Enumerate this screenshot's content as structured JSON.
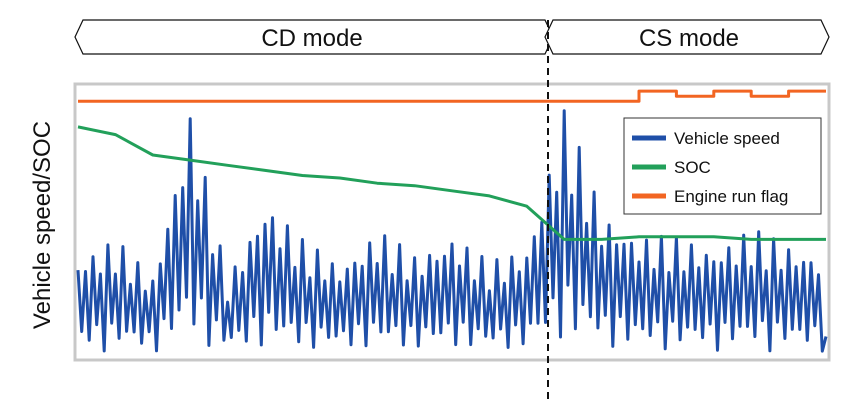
{
  "chart_data": {
    "type": "line",
    "title": "",
    "xlabel": "",
    "ylabel": "Vehicle speed/SOC",
    "grid": false,
    "legend_position": "top-right",
    "modes": [
      {
        "name": "CD mode"
      },
      {
        "name": "CS mode"
      }
    ],
    "x": [
      0,
      5,
      10,
      15,
      20,
      25,
      30,
      35,
      40,
      45,
      50,
      55,
      60,
      65,
      70,
      75,
      80,
      85,
      90,
      95,
      100
    ],
    "series": [
      {
        "name": "Vehicle speed",
        "color": "#1f4fa8",
        "values": [
          40,
          46,
          32,
          98,
          30,
          63,
          46,
          37,
          50,
          40,
          49,
          37,
          44,
          98,
          58,
          48,
          47,
          44,
          50,
          45,
          40
        ]
      },
      {
        "name": "SOC",
        "color": "#22a05a",
        "values": [
          90,
          87,
          79,
          77,
          75,
          73,
          71,
          70,
          68,
          67,
          65,
          63,
          59,
          46,
          46,
          47,
          47,
          47,
          46,
          46,
          46
        ]
      },
      {
        "name": "Engine run flag",
        "color": "#f26522",
        "values": [
          100,
          100,
          100,
          100,
          100,
          100,
          100,
          100,
          100,
          100,
          100,
          100,
          100,
          100,
          100,
          104,
          102,
          104,
          102,
          104,
          104
        ]
      }
    ]
  }
}
